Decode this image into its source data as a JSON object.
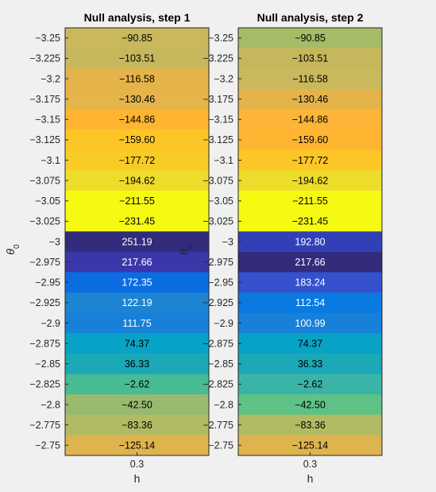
{
  "chart_data": [
    {
      "type": "heatmap",
      "title": "Null analysis, step 1",
      "xlabel": "h",
      "ylabel": "θ0",
      "x_ticks": [
        "0.3"
      ],
      "y_ticks": [
        "-3.25",
        "-3.225",
        "-3.2",
        "-3.175",
        "-3.15",
        "-3.125",
        "-3.1",
        "-3.075",
        "-3.05",
        "-3.025",
        "-3",
        "-2.975",
        "-2.95",
        "-2.925",
        "-2.9",
        "-2.875",
        "-2.85",
        "-2.825",
        "-2.8",
        "-2.775",
        "-2.75"
      ],
      "values": [
        -90.85,
        -103.51,
        -116.58,
        -130.46,
        -144.86,
        -159.6,
        -177.72,
        -194.62,
        -211.55,
        -231.45,
        251.19,
        217.66,
        172.35,
        122.19,
        111.75,
        74.37,
        36.33,
        -2.62,
        -42.5,
        -83.36,
        -125.14
      ],
      "labels": [
        "-90.85",
        "-103.51",
        "-116.58",
        "-130.46",
        "-144.86",
        "-159.60",
        "-177.72",
        "-194.62",
        "-211.55",
        "-231.45",
        "251.19",
        "217.66",
        "172.35",
        "122.19",
        "111.75",
        "74.37",
        "36.33",
        "-2.62",
        "-42.50",
        "-83.36",
        "-125.14"
      ],
      "colors": [
        "#c9b85c",
        "#c7b75c",
        "#e4b34a",
        "#e5b44a",
        "#ffb531",
        "#fcc726",
        "#f9cb25",
        "#eedc2a",
        "#f6fa13",
        "#f6fa13",
        "#332b7b",
        "#3937aa",
        "#0b6ce1",
        "#1c84d3",
        "#1780d9",
        "#07a3c7",
        "#1ba8b7",
        "#47bb91",
        "#98ba70",
        "#b0bb63",
        "#deb44f"
      ],
      "colorscale": "parula"
    },
    {
      "type": "heatmap",
      "title": "Null analysis, step 2",
      "xlabel": "h",
      "ylabel": "θ0",
      "x_ticks": [
        "0.3"
      ],
      "y_ticks": [
        "-3.25",
        "-3.225",
        "-3.2",
        "-3.175",
        "-3.15",
        "-3.125",
        "-3.1",
        "-3.075",
        "-3.05",
        "-3.025",
        "-3",
        "-2.975",
        "-2.95",
        "-2.925",
        "-2.9",
        "-2.875",
        "-2.85",
        "-2.825",
        "-2.8",
        "-2.775",
        "-2.75"
      ],
      "values": [
        -90.85,
        -103.51,
        -116.58,
        -130.46,
        -144.86,
        -159.6,
        -177.72,
        -194.62,
        -211.55,
        -231.45,
        192.8,
        217.66,
        183.24,
        112.54,
        100.99,
        74.37,
        36.33,
        -2.62,
        -42.5,
        -83.36,
        -125.14
      ],
      "labels": [
        "-90.85",
        "-103.51",
        "-116.58",
        "-130.46",
        "-144.86",
        "-159.60",
        "-177.72",
        "-194.62",
        "-211.55",
        "-231.45",
        "192.80",
        "217.66",
        "183.24",
        "112.54",
        "100.99",
        "74.37",
        "36.33",
        "-2.62",
        "-42.50",
        "-83.36",
        "-125.14"
      ],
      "colors": [
        "#a5bb66",
        "#c7b75c",
        "#c9b85c",
        "#e4b34a",
        "#fcb537",
        "#ffb531",
        "#fcc726",
        "#eedc2a",
        "#f6fa13",
        "#f6fa13",
        "#3240b8",
        "#332b7b",
        "#3551ce",
        "#0a79e0",
        "#1780d9",
        "#07a3c7",
        "#1ba8b7",
        "#3ab4a7",
        "#5ec287",
        "#b0bb63",
        "#deb44f"
      ],
      "colorscale": "parula"
    }
  ]
}
